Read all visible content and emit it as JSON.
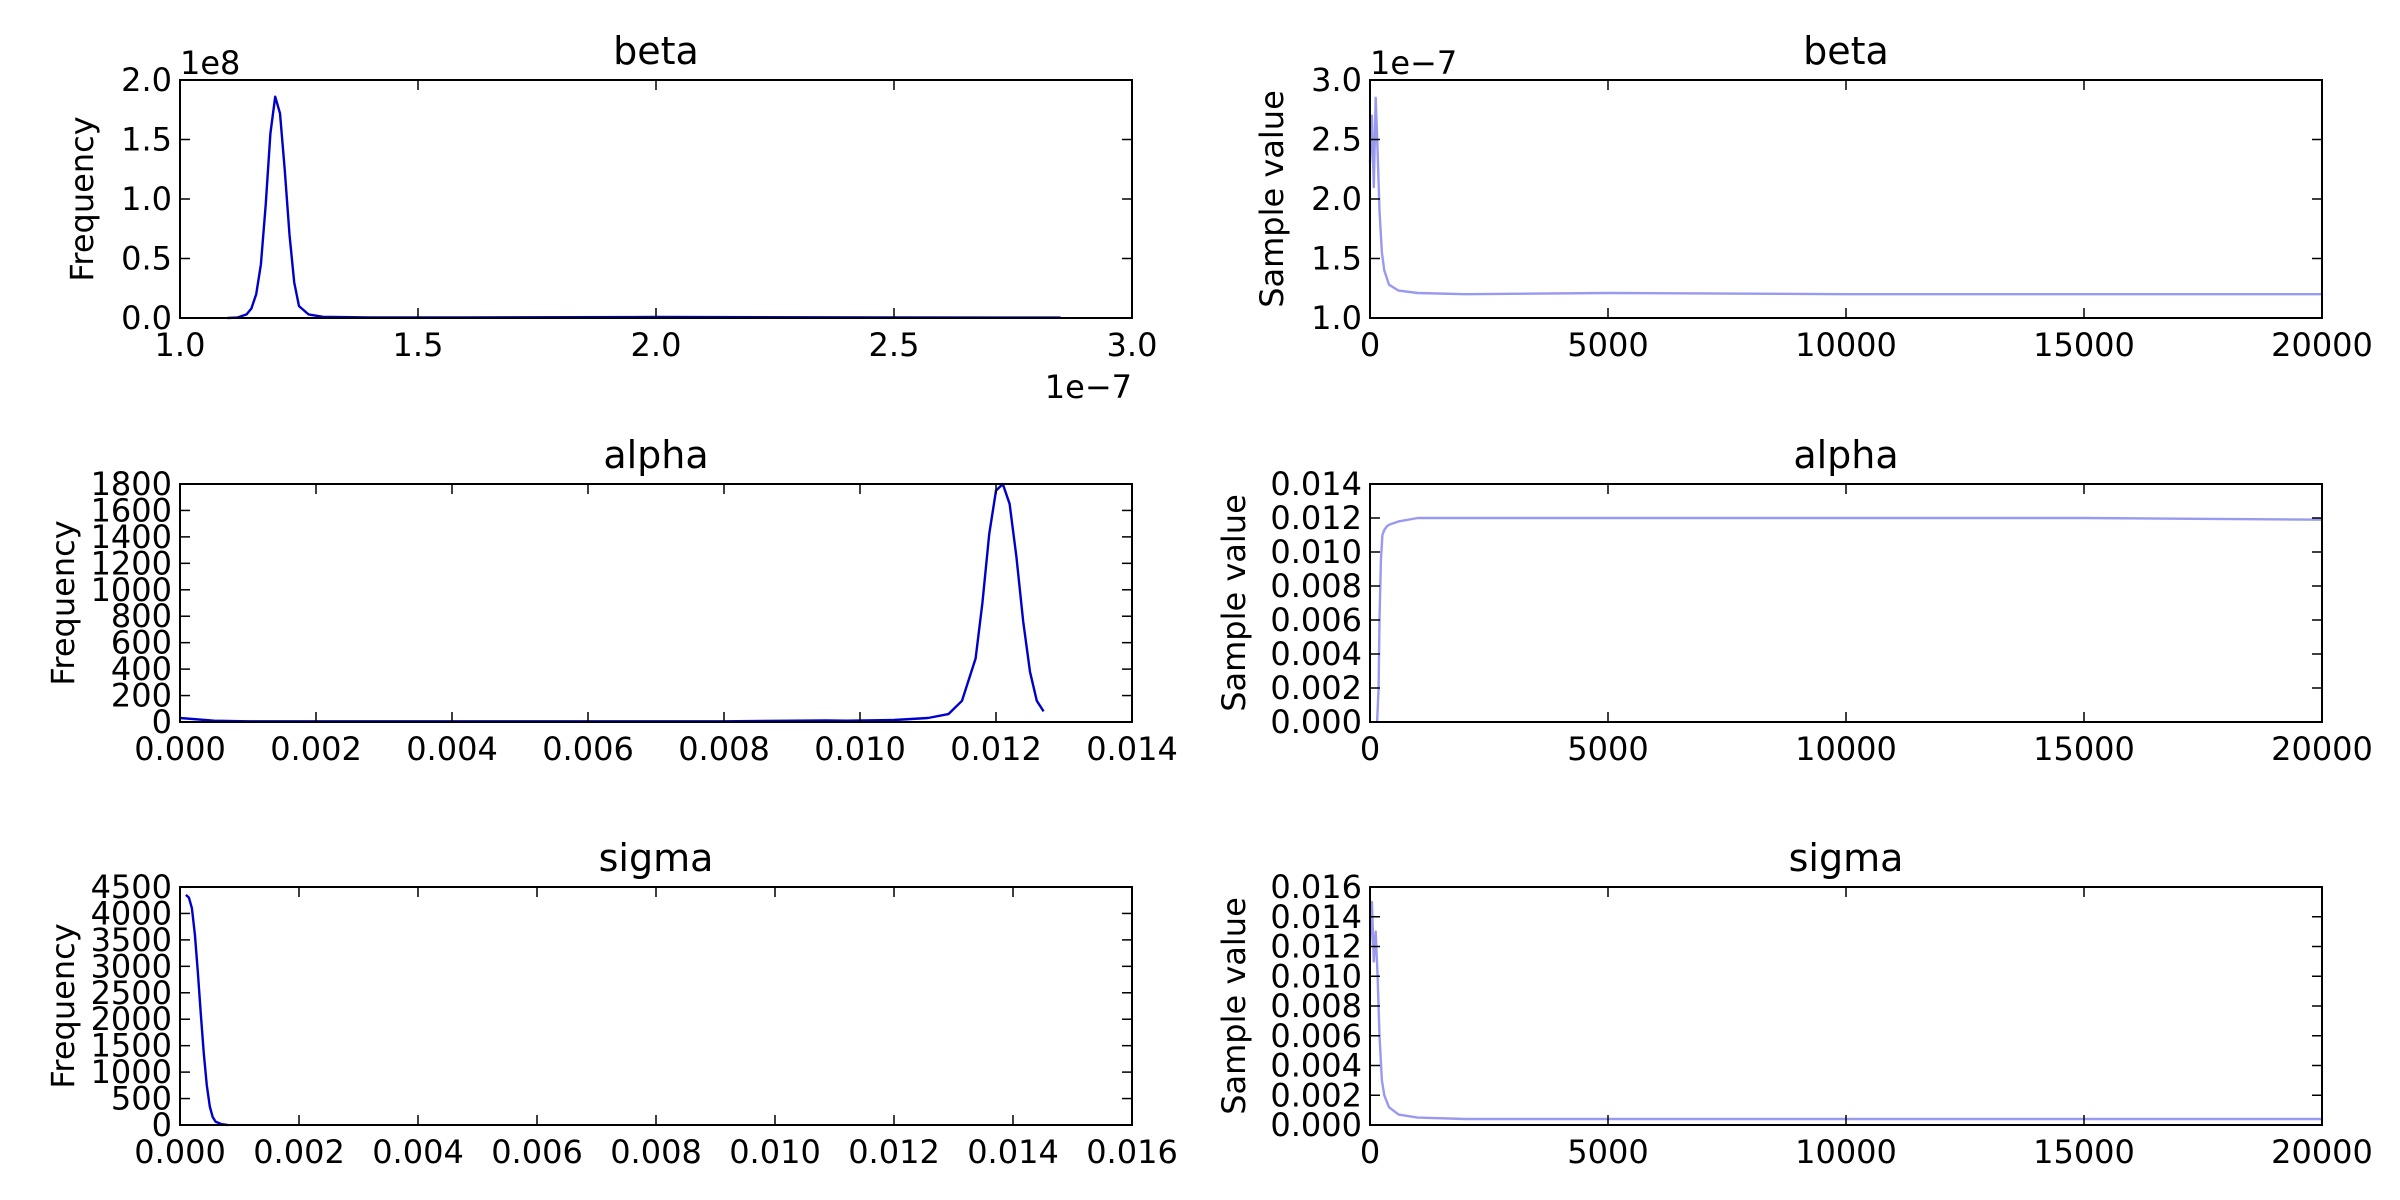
{
  "chart_data": [
    {
      "type": "line",
      "panel": "density",
      "title": "beta",
      "xlabel": "",
      "ylabel": "Frequency",
      "x_offset_label": "1e−7",
      "y_offset_label": "1e8",
      "xlim": [
        1.0,
        3.0
      ],
      "ylim": [
        0.0,
        2.0
      ],
      "xticks": [
        "1.0",
        "1.5",
        "2.0",
        "2.5",
        "3.0"
      ],
      "yticks": [
        "0.0",
        "0.5",
        "1.0",
        "1.5",
        "2.0"
      ],
      "color": "#0000cc",
      "x": [
        1.1,
        1.12,
        1.14,
        1.15,
        1.16,
        1.17,
        1.18,
        1.19,
        1.2,
        1.21,
        1.22,
        1.23,
        1.24,
        1.25,
        1.27,
        1.3,
        1.4,
        1.6,
        2.0,
        2.5,
        2.85
      ],
      "y": [
        0.0,
        0.003,
        0.03,
        0.08,
        0.2,
        0.45,
        0.95,
        1.55,
        1.86,
        1.72,
        1.25,
        0.7,
        0.3,
        0.1,
        0.03,
        0.01,
        0.005,
        0.005,
        0.008,
        0.005,
        0.003
      ]
    },
    {
      "type": "line",
      "panel": "trace",
      "title": "beta",
      "xlabel": "",
      "ylabel": "Sample value",
      "y_offset_label": "1e−7",
      "xlim": [
        0,
        20000
      ],
      "ylim": [
        1.0,
        3.0
      ],
      "xticks": [
        "0",
        "5000",
        "10000",
        "15000",
        "20000"
      ],
      "yticks": [
        "1.0",
        "1.5",
        "2.0",
        "2.5",
        "3.0"
      ],
      "color": "#9999f0",
      "x": [
        0,
        40,
        80,
        120,
        160,
        200,
        250,
        300,
        400,
        600,
        1000,
        2000,
        5000,
        10000,
        15000,
        20000
      ],
      "y": [
        2.3,
        2.7,
        2.1,
        2.85,
        2.4,
        1.9,
        1.55,
        1.4,
        1.28,
        1.23,
        1.21,
        1.2,
        1.21,
        1.2,
        1.2,
        1.2
      ]
    },
    {
      "type": "line",
      "panel": "density",
      "title": "alpha",
      "xlabel": "",
      "ylabel": "Frequency",
      "xlim": [
        0.0,
        0.014
      ],
      "ylim": [
        0,
        1800
      ],
      "xticks": [
        "0.000",
        "0.002",
        "0.004",
        "0.006",
        "0.008",
        "0.010",
        "0.012",
        "0.014"
      ],
      "yticks": [
        "0",
        "200",
        "400",
        "600",
        "800",
        "1000",
        "1200",
        "1400",
        "1600",
        "1800"
      ],
      "color": "#0000cc",
      "x": [
        0.0,
        0.0005,
        0.001,
        0.004,
        0.008,
        0.0095,
        0.0098,
        0.0105,
        0.011,
        0.0113,
        0.0115,
        0.0117,
        0.0118,
        0.0119,
        0.012,
        0.0121,
        0.0122,
        0.0123,
        0.0124,
        0.0125,
        0.0126,
        0.0127
      ],
      "y": [
        30,
        10,
        5,
        5,
        5,
        12,
        10,
        15,
        30,
        60,
        160,
        480,
        900,
        1420,
        1750,
        1800,
        1650,
        1250,
        760,
        380,
        160,
        80
      ]
    },
    {
      "type": "line",
      "panel": "trace",
      "title": "alpha",
      "xlabel": "",
      "ylabel": "Sample value",
      "xlim": [
        0,
        20000
      ],
      "ylim": [
        0.0,
        0.014
      ],
      "xticks": [
        "0",
        "5000",
        "10000",
        "15000",
        "20000"
      ],
      "yticks": [
        "0.000",
        "0.002",
        "0.004",
        "0.006",
        "0.008",
        "0.010",
        "0.012",
        "0.014"
      ],
      "color": "#9999f0",
      "x": [
        150,
        180,
        200,
        230,
        260,
        300,
        350,
        400,
        600,
        1000,
        2000,
        5000,
        10000,
        15000,
        20000
      ],
      "y": [
        0.0,
        0.002,
        0.006,
        0.0095,
        0.011,
        0.0113,
        0.0115,
        0.0116,
        0.0118,
        0.012,
        0.012,
        0.012,
        0.012,
        0.012,
        0.0119
      ]
    },
    {
      "type": "line",
      "panel": "density",
      "title": "sigma",
      "xlabel": "",
      "ylabel": "Frequency",
      "xlim": [
        0.0,
        0.016
      ],
      "ylim": [
        0,
        4500
      ],
      "xticks": [
        "0.000",
        "0.002",
        "0.004",
        "0.006",
        "0.008",
        "0.010",
        "0.012",
        "0.014",
        "0.016"
      ],
      "yticks": [
        "0",
        "500",
        "1000",
        "1500",
        "2000",
        "2500",
        "3000",
        "3500",
        "4000",
        "4500"
      ],
      "color": "#0000cc",
      "x": [
        0.0001,
        0.00015,
        0.0002,
        0.00025,
        0.0003,
        0.00035,
        0.0004,
        0.00045,
        0.0005,
        0.00055,
        0.0006,
        0.0007,
        0.0008
      ],
      "y": [
        4350,
        4300,
        4100,
        3600,
        2900,
        2100,
        1350,
        750,
        350,
        150,
        60,
        15,
        0
      ]
    },
    {
      "type": "line",
      "panel": "trace",
      "title": "sigma",
      "xlabel": "",
      "ylabel": "Sample value",
      "xlim": [
        0,
        20000
      ],
      "ylim": [
        0.0,
        0.016
      ],
      "xticks": [
        "0",
        "5000",
        "10000",
        "15000",
        "20000"
      ],
      "yticks": [
        "0.000",
        "0.002",
        "0.004",
        "0.006",
        "0.008",
        "0.010",
        "0.012",
        "0.014",
        "0.016"
      ],
      "color": "#9999f0",
      "x": [
        0,
        40,
        80,
        120,
        160,
        200,
        250,
        300,
        400,
        600,
        1000,
        2000,
        5000,
        10000,
        15000,
        20000
      ],
      "y": [
        0.012,
        0.015,
        0.011,
        0.013,
        0.01,
        0.006,
        0.003,
        0.002,
        0.0012,
        0.0007,
        0.0005,
        0.0004,
        0.0004,
        0.0004,
        0.0004,
        0.0004
      ]
    }
  ]
}
